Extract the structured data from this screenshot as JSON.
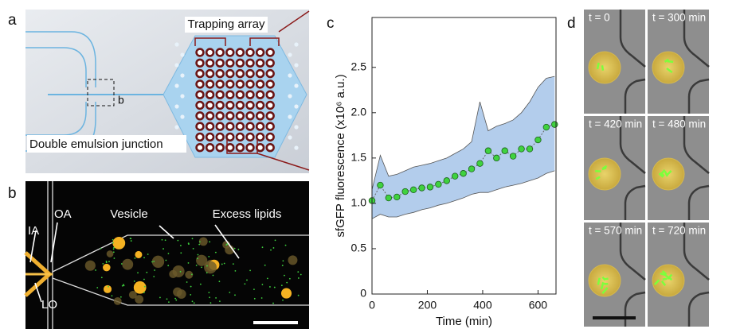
{
  "panel_labels": [
    "a",
    "b",
    "c",
    "d"
  ],
  "panel_a": {
    "array_label": "Trapping array",
    "inset_label": "b",
    "junction_label": "Double emulsion junction"
  },
  "panel_b": {
    "labels": [
      "IA",
      "OA",
      "Vesicle",
      "Excess lipids",
      "LO"
    ]
  },
  "panel_d": {
    "timepoints": [
      "t = 0",
      "t = 300 min",
      "t = 420 min",
      "t = 480 min",
      "t = 570 min",
      "t = 720 min"
    ]
  },
  "chart_data": {
    "type": "line",
    "xlabel": "Time (min)",
    "ylabel": "sfGFP fluorescence (x10⁶ a.u.)",
    "x": [
      0,
      30,
      60,
      90,
      120,
      150,
      180,
      210,
      240,
      270,
      300,
      330,
      360,
      390,
      420,
      450,
      480,
      510,
      540,
      570,
      600,
      630,
      660
    ],
    "series": [
      {
        "color": "#3fd23f",
        "values": [
          1.03,
          1.2,
          1.06,
          1.07,
          1.13,
          1.15,
          1.17,
          1.18,
          1.21,
          1.25,
          1.3,
          1.33,
          1.38,
          1.44,
          1.58,
          1.5,
          1.58,
          1.52,
          1.6,
          1.6,
          1.7,
          1.84,
          1.87
        ]
      },
      {
        "color": "#b3cdec",
        "values": [
          1.15,
          1.53,
          1.3,
          1.32,
          1.36,
          1.4,
          1.42,
          1.44,
          1.47,
          1.5,
          1.55,
          1.6,
          1.68,
          2.12,
          1.8,
          1.85,
          1.88,
          1.92,
          2.0,
          2.12,
          2.28,
          2.38,
          2.4
        ]
      },
      {
        "color": "#b3cdec",
        "values": [
          0.83,
          0.88,
          0.85,
          0.85,
          0.88,
          0.9,
          0.93,
          0.95,
          0.98,
          1.0,
          1.03,
          1.06,
          1.1,
          1.12,
          1.12,
          1.15,
          1.18,
          1.2,
          1.22,
          1.25,
          1.28,
          1.33,
          1.36
        ]
      }
    ],
    "xlim": [
      0,
      665
    ],
    "xticks": [
      0,
      200,
      400,
      600
    ],
    "ylim": [
      0,
      3.05
    ],
    "yticks": [
      0,
      0.5,
      {
        "value": 1,
        "label": "1.0"
      },
      1.5,
      {
        "value": 2,
        "label": "2.0"
      },
      2.5
    ]
  }
}
